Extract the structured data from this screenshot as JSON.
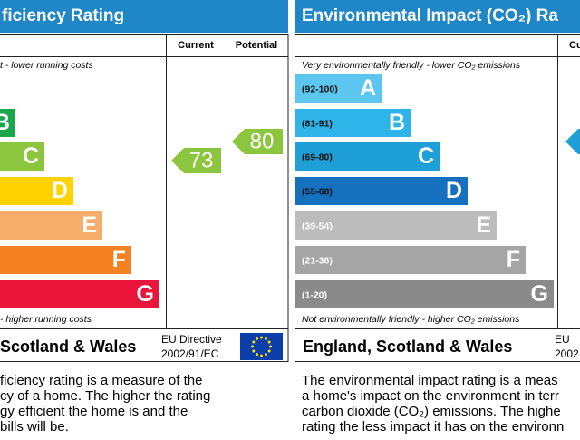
{
  "left": {
    "title": "ficiency Rating",
    "col_current": "Current",
    "col_potential": "Potential",
    "top_note": "t - lower running costs",
    "bottom_note": "- higher running costs",
    "bands": [
      "B",
      "C",
      "D",
      "E",
      "F",
      "G"
    ],
    "current": "73",
    "potential": "80",
    "footer": "Scotland & Wales",
    "directive": [
      "EU Directive",
      "2002/91/EC"
    ],
    "description": [
      "ficiency rating is a measure of the",
      "cy of a home. The higher the rating",
      "gy efficient the home is and the",
      "bills will be."
    ]
  },
  "right": {
    "title": "Environmental Impact (CO₂) Ra",
    "col_current": "Cu",
    "top_note": "Very environmentally friendly - lower CO₂ emissions",
    "bottom_note": "Not environmentally friendly - higher CO₂ emissions",
    "bands": [
      {
        "range": "(92-100)",
        "letter": "A"
      },
      {
        "range": "(81-91)",
        "letter": "B"
      },
      {
        "range": "(69-80)",
        "letter": "C"
      },
      {
        "range": "(55-68)",
        "letter": "D"
      },
      {
        "range": "(39-54)",
        "letter": "E"
      },
      {
        "range": "(21-38)",
        "letter": "F"
      },
      {
        "range": "(1-20)",
        "letter": "G"
      }
    ],
    "footer": "England, Scotland & Wales",
    "directive": [
      "EU",
      "2002"
    ],
    "description": [
      "The environmental impact rating is a meas",
      "a home's impact on the environment in terr",
      "carbon dioxide (CO₂) emissions. The highe",
      "rating the less impact it has on the environn"
    ]
  }
}
